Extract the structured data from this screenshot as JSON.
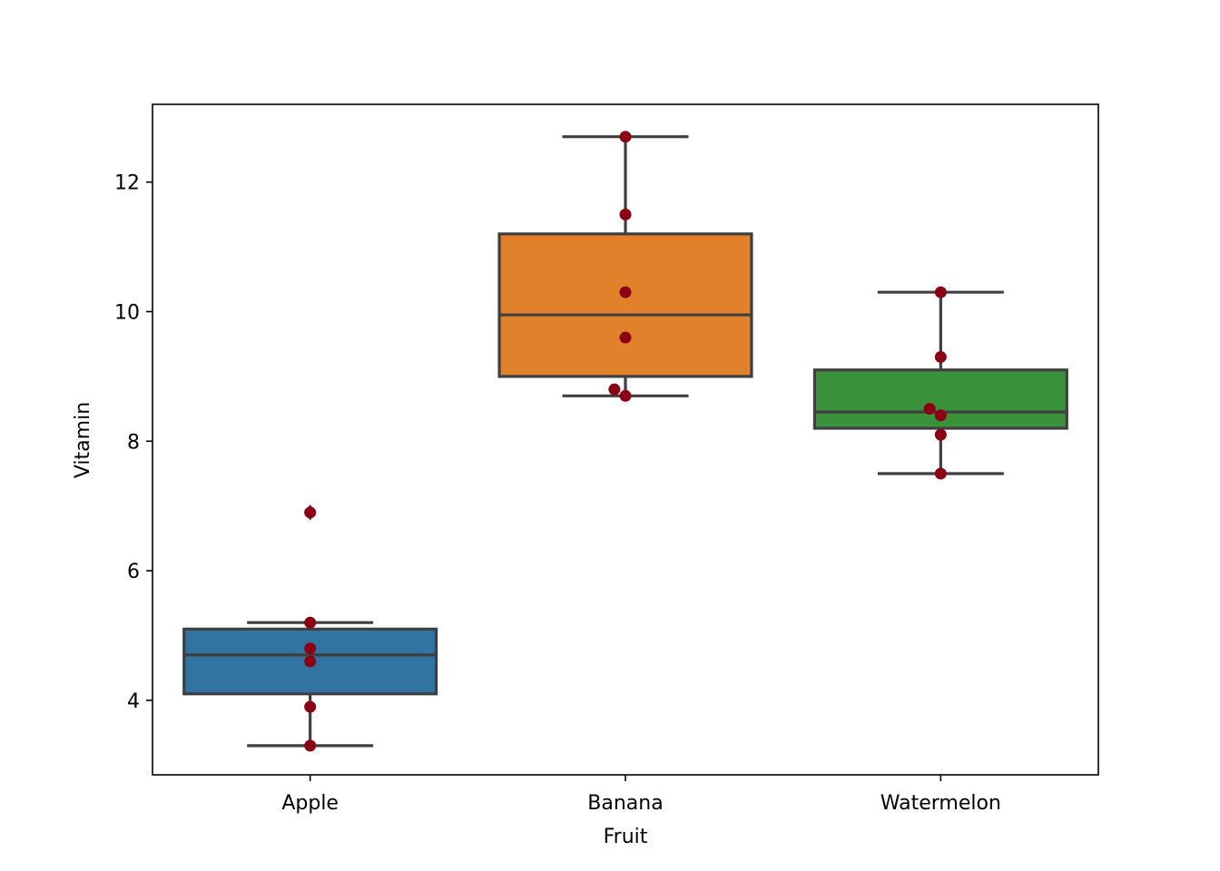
{
  "chart_data": {
    "type": "box",
    "title": "",
    "xlabel": "Fruit",
    "ylabel": "Vitamin",
    "categories": [
      "Apple",
      "Banana",
      "Watermelon"
    ],
    "ylim": [
      2.85,
      13.2
    ],
    "yticks": [
      4,
      6,
      8,
      10,
      12
    ],
    "ytick_labels": [
      "4",
      "6",
      "8",
      "10",
      "12"
    ],
    "grid": false,
    "legend": "none",
    "boxes": [
      {
        "category": "Apple",
        "whisker_low": 3.3,
        "q1": 4.1,
        "median": 4.7,
        "q3": 5.1,
        "whisker_high": 5.2,
        "outliers": [
          6.9
        ],
        "color": "#3274a1"
      },
      {
        "category": "Banana",
        "whisker_low": 8.7,
        "q1": 9.0,
        "median": 9.95,
        "q3": 11.2,
        "whisker_high": 12.7,
        "outliers": [],
        "color": "#e1812c"
      },
      {
        "category": "Watermelon",
        "whisker_low": 7.5,
        "q1": 8.2,
        "median": 8.45,
        "q3": 9.1,
        "whisker_high": 10.3,
        "outliers": [],
        "color": "#3a923a"
      }
    ],
    "points": [
      {
        "category": "Apple",
        "values": [
          3.3,
          3.9,
          4.6,
          4.8,
          5.2,
          6.9
        ],
        "jitter": [
          0,
          0,
          0,
          0,
          0,
          0
        ]
      },
      {
        "category": "Banana",
        "values": [
          8.7,
          8.8,
          9.6,
          10.3,
          11.5,
          12.7
        ],
        "jitter": [
          0,
          -0.035,
          0,
          0,
          0,
          0
        ]
      },
      {
        "category": "Watermelon",
        "values": [
          7.5,
          8.1,
          8.4,
          8.5,
          9.3,
          10.3
        ],
        "jitter": [
          0,
          0,
          0,
          -0.035,
          0,
          0
        ]
      }
    ],
    "point_color": "#8b0013",
    "line_color": "#3f3f3f"
  }
}
